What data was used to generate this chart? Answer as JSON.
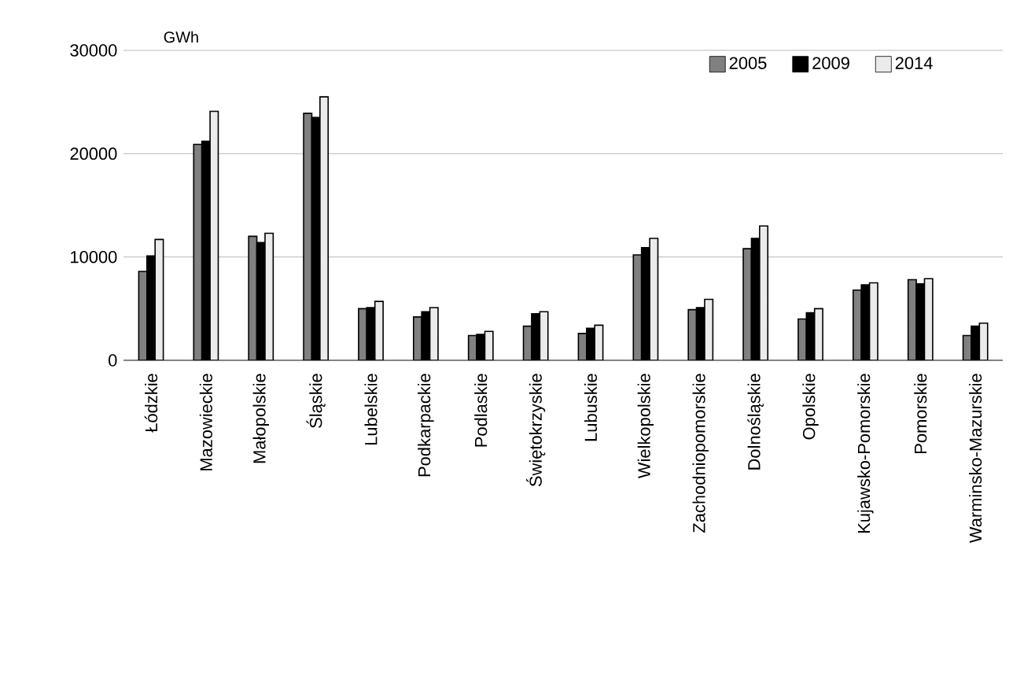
{
  "chart_data": {
    "type": "bar",
    "ylabel": "GWh",
    "categories": [
      "Łódzkie",
      "Mazowieckie",
      "Małopolskie",
      "Śląskie",
      "Lubelskie",
      "Podkarpackie",
      "Podlaskie",
      "Świętokrzyskie",
      "Lubuskie",
      "Wielkopolskie",
      "Zachodniopomorskie",
      "Dolnośląskie",
      "Opolskie",
      "Kujawsko-Pomorskie",
      "Pomorskie",
      "Warminsko-Mazurskie"
    ],
    "series": [
      {
        "name": "2005",
        "color": "#808080",
        "values": [
          8600,
          20900,
          12000,
          23900,
          5000,
          4200,
          2400,
          3300,
          2600,
          10200,
          4900,
          10800,
          4000,
          6800,
          7800,
          2400
        ]
      },
      {
        "name": "2009",
        "color": "#000000",
        "values": [
          10100,
          21200,
          11400,
          23500,
          5100,
          4700,
          2500,
          4500,
          3100,
          10900,
          5100,
          11800,
          4600,
          7300,
          7400,
          3300
        ]
      },
      {
        "name": "2014",
        "color": "#ebebeb",
        "values": [
          11700,
          24100,
          12300,
          25500,
          5700,
          5100,
          2800,
          4700,
          3400,
          11800,
          5900,
          13000,
          5000,
          7500,
          7900,
          3600
        ]
      }
    ],
    "ylim": [
      0,
      30000
    ],
    "yticks": [
      0,
      10000,
      20000,
      30000
    ],
    "grid": "y",
    "legend": "top right"
  }
}
